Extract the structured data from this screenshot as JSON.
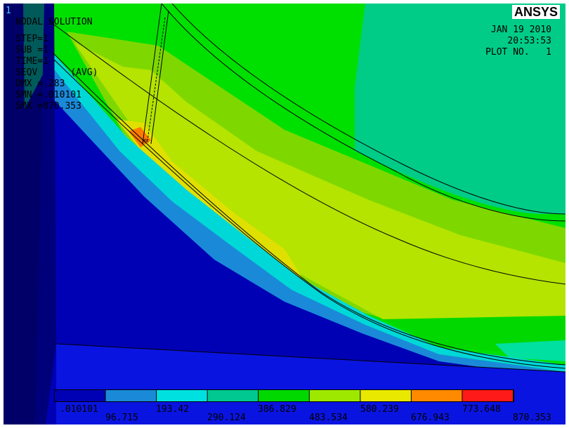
{
  "window": {
    "number": "1"
  },
  "brand": {
    "logo_text": "ANSYS"
  },
  "header": {
    "title": "NODAL SOLUTION",
    "step": "STEP=1",
    "sub": "SUB =1",
    "time": "TIME=1",
    "result": "SEQV      (AVG)",
    "dmx": "DMX =.283",
    "smn": "SMN =.010101",
    "smx": "SMX =870.353",
    "marker": "MX"
  },
  "info": {
    "date": "JAN 19 2010",
    "time": "20:53:53",
    "plot_no": "PLOT NO.   1"
  },
  "legend": {
    "colors": [
      "#0000b5",
      "#1a8ad8",
      "#00e0e0",
      "#00c890",
      "#00d800",
      "#9ee800",
      "#e8e800",
      "#ff8a00",
      "#ff1a1a"
    ],
    "upper_labels": [
      "",
      ".010101",
      "",
      "193.42",
      "",
      "386.829",
      "",
      "580.239",
      "",
      "773.648"
    ],
    "lower_labels": [
      "96.715",
      "290.124",
      "483.534",
      "676.943",
      "870.353"
    ]
  }
}
